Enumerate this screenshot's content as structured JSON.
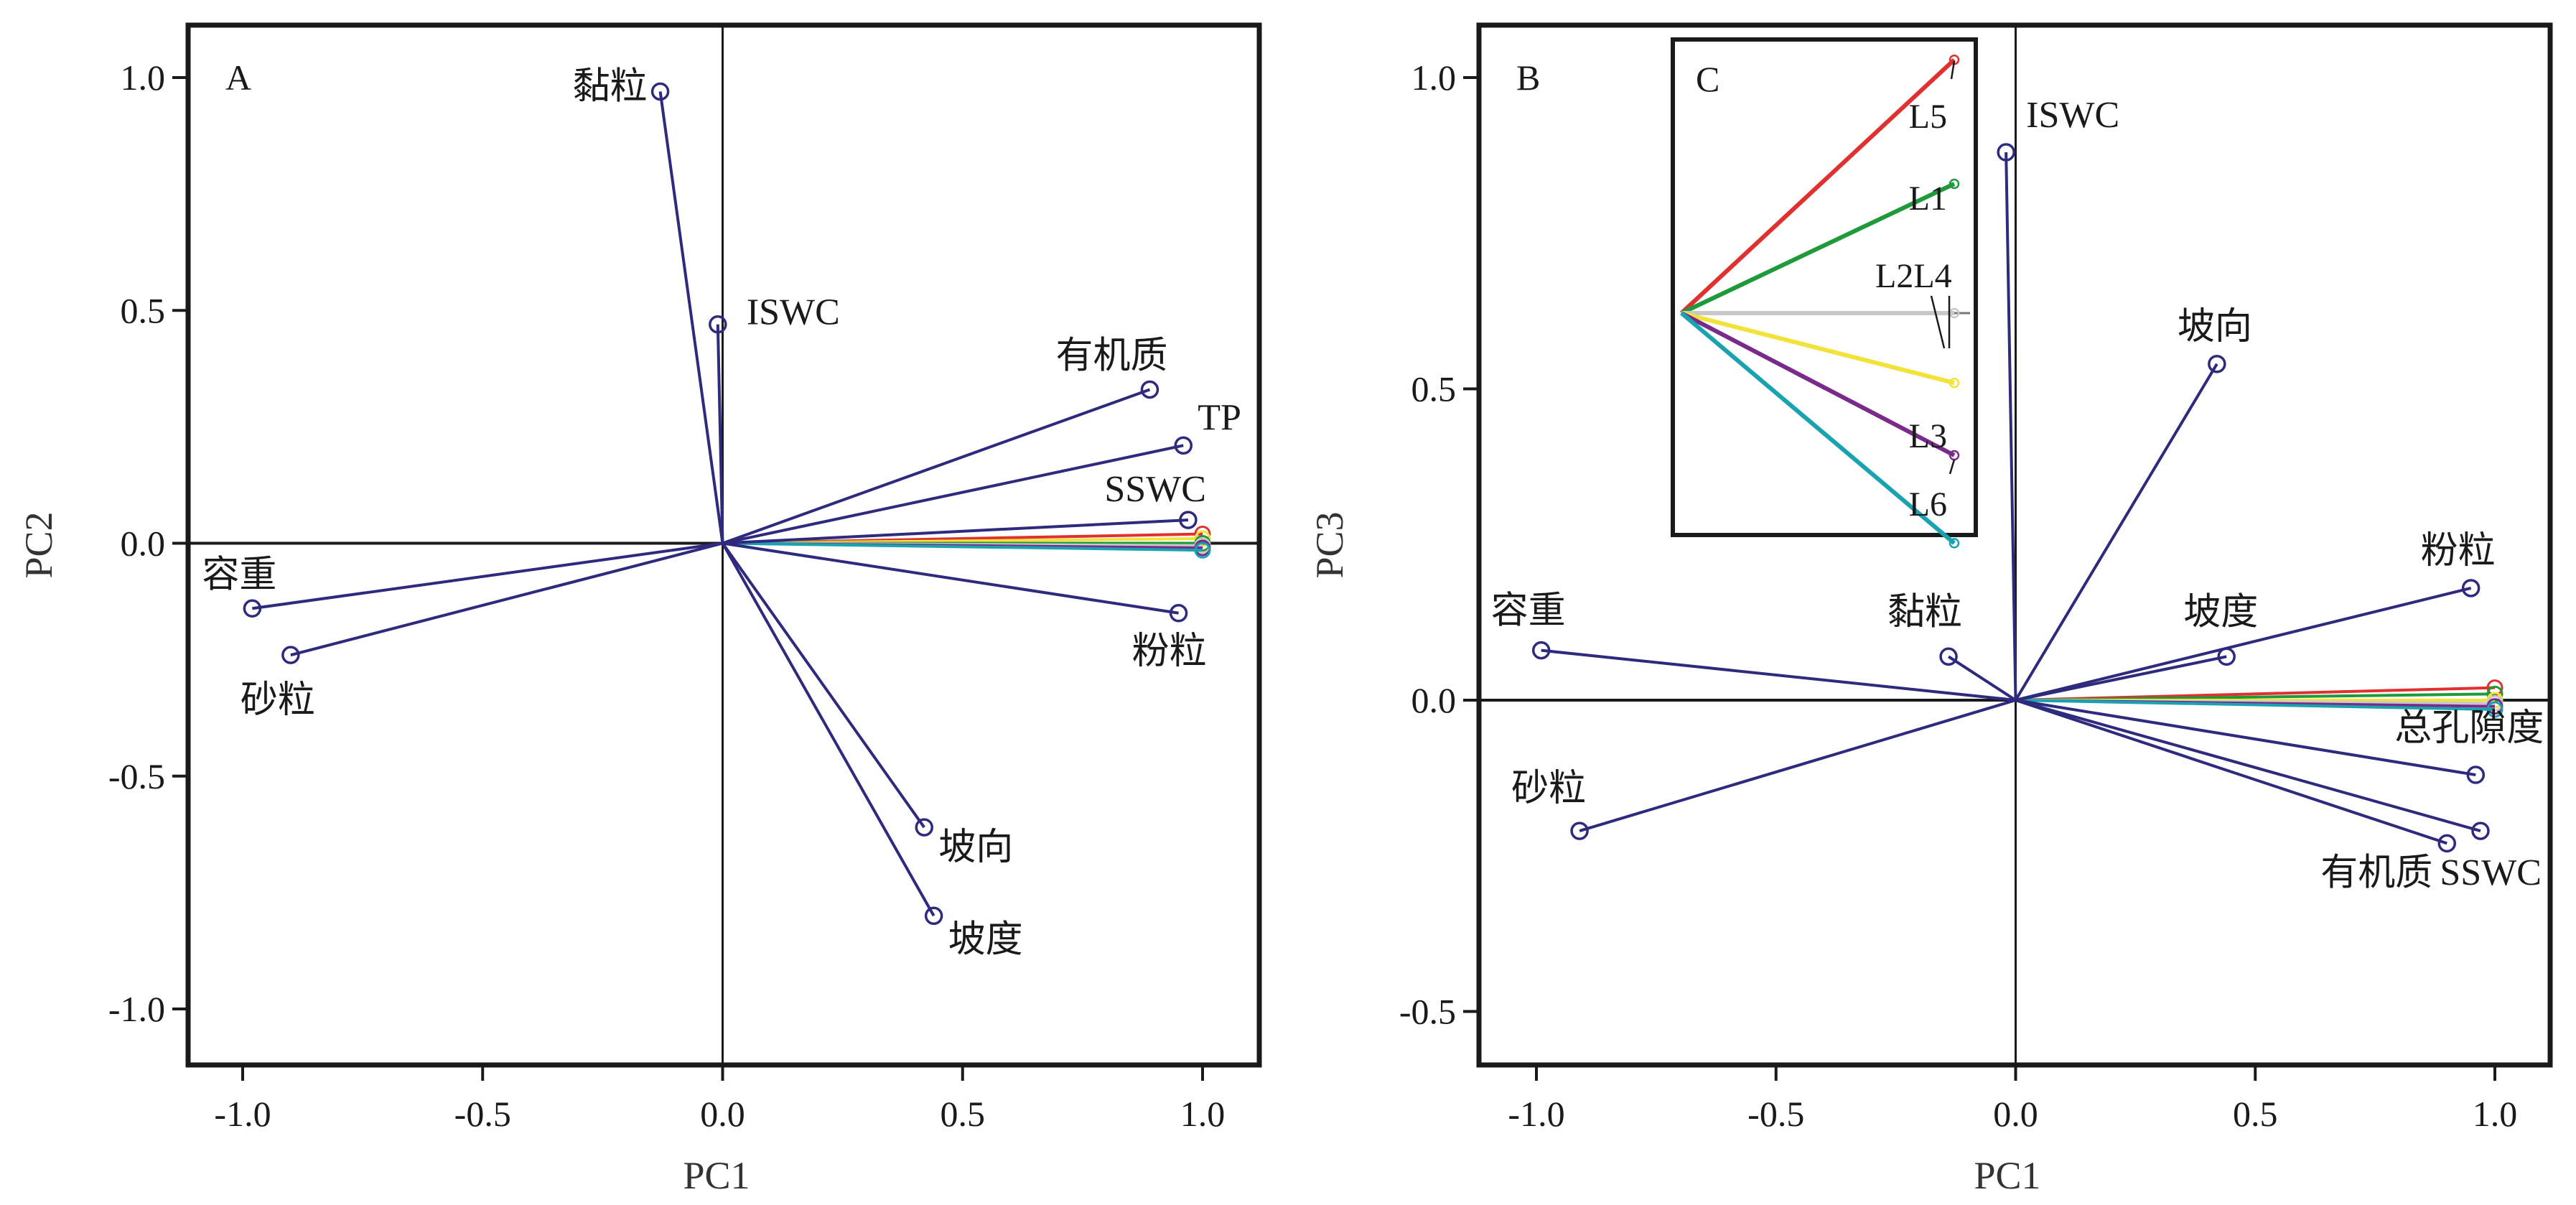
{
  "colors": {
    "vector": "#2e2a7e",
    "L1": "#1f9a3a",
    "L2": "#c8c8c8",
    "L3": "#7a2a8a",
    "L4": "#f2e33a",
    "L5": "#e03030",
    "L6": "#19a3b0",
    "axis": "#1a1a1a"
  },
  "chart_data": [
    {
      "type": "scatter",
      "panel_label": "A",
      "xlabel": "PC1",
      "ylabel": "PC2",
      "xlim": [
        -1.1,
        1.1
      ],
      "ylim": [
        -1.1,
        1.1
      ],
      "xticks": [
        {
          "value": -1.0,
          "label": "-1.0"
        },
        {
          "value": -0.5,
          "label": "-0.5"
        },
        {
          "value": 0.0,
          "label": "0.0"
        },
        {
          "value": 0.5,
          "label": "0.5"
        },
        {
          "value": 1.0,
          "label": "1.0"
        }
      ],
      "yticks": [
        {
          "value": 1.0,
          "label": "1.0"
        },
        {
          "value": 0.5,
          "label": "0.5"
        },
        {
          "value": 0.0,
          "label": "0.0"
        },
        {
          "value": -0.5,
          "label": "-0.5"
        },
        {
          "value": -1.0,
          "label": "-1.0"
        }
      ],
      "grid": false,
      "vectors": [
        {
          "label": "黏粒",
          "x": -0.13,
          "y": 0.97
        },
        {
          "label": "ISWC",
          "x": -0.01,
          "y": 0.47
        },
        {
          "label": "有机质",
          "x": 0.89,
          "y": 0.33
        },
        {
          "label": "TP",
          "x": 0.96,
          "y": 0.21
        },
        {
          "label": "SSWC",
          "x": 0.97,
          "y": 0.05
        },
        {
          "label": "粉粒",
          "x": 0.95,
          "y": -0.15
        },
        {
          "label": "坡向",
          "x": 0.42,
          "y": -0.61
        },
        {
          "label": "坡度",
          "x": 0.44,
          "y": -0.8
        },
        {
          "label": "容重",
          "x": -0.98,
          "y": -0.14
        },
        {
          "label": "砂粒",
          "x": -0.9,
          "y": -0.24
        }
      ],
      "sample_vectors": [
        {
          "series": "L5",
          "x": 1.0,
          "y": 0.02
        },
        {
          "series": "L4",
          "x": 1.0,
          "y": 0.01
        },
        {
          "series": "L1",
          "x": 1.0,
          "y": 0.0
        },
        {
          "series": "L2",
          "x": 1.0,
          "y": -0.005
        },
        {
          "series": "L3",
          "x": 1.0,
          "y": -0.01
        },
        {
          "series": "L6",
          "x": 1.0,
          "y": -0.015
        }
      ]
    },
    {
      "type": "scatter",
      "panel_label": "B",
      "xlabel": "PC1",
      "ylabel": "PC3",
      "xlim": [
        -1.1,
        1.12
      ],
      "ylim": [
        -0.6,
        1.1
      ],
      "xticks": [
        {
          "value": -1.0,
          "label": "-1.0"
        },
        {
          "value": -0.5,
          "label": "-0.5"
        },
        {
          "value": 0.0,
          "label": "0.0"
        },
        {
          "value": 0.5,
          "label": "0.5"
        },
        {
          "value": 1.0,
          "label": "1.0"
        }
      ],
      "yticks": [
        {
          "value": 1.0,
          "label": "1.0"
        },
        {
          "value": 0.5,
          "label": "0.5"
        },
        {
          "value": 0.0,
          "label": "0.0"
        },
        {
          "value": -0.5,
          "label": "-0.5"
        }
      ],
      "grid": false,
      "vectors": [
        {
          "label": "ISWC",
          "x": -0.02,
          "y": 0.88
        },
        {
          "label": "坡向",
          "x": 0.42,
          "y": 0.54
        },
        {
          "label": "粉粒",
          "x": 0.95,
          "y": 0.18
        },
        {
          "label": "坡度",
          "x": 0.44,
          "y": 0.07
        },
        {
          "label": "黏粒",
          "x": -0.14,
          "y": 0.07
        },
        {
          "label": "容重",
          "x": -0.99,
          "y": 0.08
        },
        {
          "label": "砂粒",
          "x": -0.91,
          "y": -0.21
        },
        {
          "label": "总孔隙度",
          "x": 0.96,
          "y": -0.12
        },
        {
          "label": "有机质",
          "x": 0.9,
          "y": -0.23
        },
        {
          "label": "SSWC",
          "x": 0.97,
          "y": -0.21
        }
      ],
      "sample_vectors": [
        {
          "series": "L5",
          "x": 1.0,
          "y": 0.02
        },
        {
          "series": "L1",
          "x": 1.0,
          "y": 0.01
        },
        {
          "series": "L4",
          "x": 1.0,
          "y": 0.0
        },
        {
          "series": "L2",
          "x": 1.0,
          "y": -0.005
        },
        {
          "series": "L3",
          "x": 1.0,
          "y": -0.01
        },
        {
          "series": "L6",
          "x": 1.0,
          "y": -0.015
        }
      ]
    },
    {
      "type": "line",
      "panel_label": "C",
      "inset_of": "B",
      "series": [
        {
          "name": "L5",
          "label": "L5",
          "x": 1.0,
          "y": 1.0
        },
        {
          "name": "L1",
          "label": "L1",
          "x": 1.0,
          "y": 0.5
        },
        {
          "name": "L2",
          "label": "",
          "x": 1.0,
          "y": 0.0
        },
        {
          "name": "L4",
          "label": "",
          "x": 1.0,
          "y": -0.27
        },
        {
          "name": "L3",
          "label": "L3",
          "x": 1.0,
          "y": -0.55
        },
        {
          "name": "L6",
          "label": "L6",
          "x": 1.0,
          "y": -0.89
        }
      ],
      "combined_label": "L2L4"
    }
  ]
}
